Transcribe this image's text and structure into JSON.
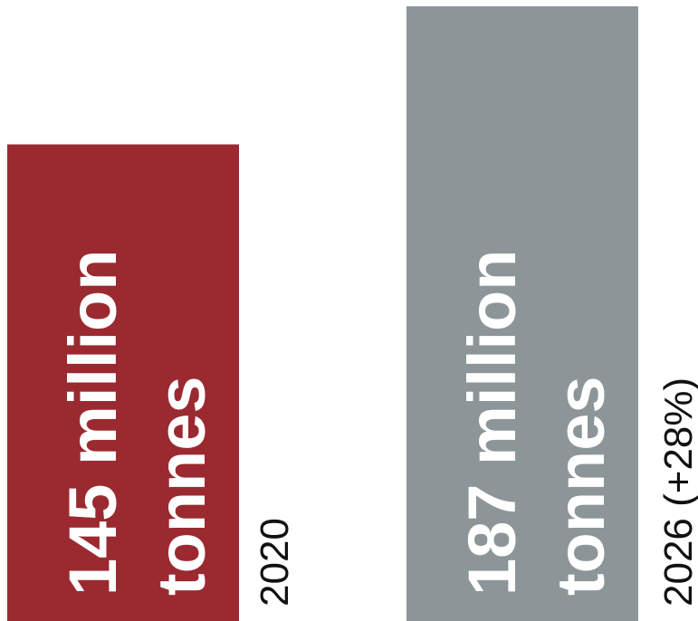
{
  "chart_data": {
    "type": "bar",
    "orientation": "vertical",
    "categories": [
      "2020",
      "2026 (+28%)"
    ],
    "values": [
      145,
      187
    ],
    "unit": "million tonnes",
    "data_labels": [
      [
        "145 million",
        "tonnes"
      ],
      [
        "187 million",
        "tonnes"
      ]
    ],
    "colors": [
      "#9a2a30",
      "#8c9699"
    ],
    "title": "",
    "xlabel": "",
    "ylabel": "",
    "grid": false,
    "legend": "none"
  }
}
